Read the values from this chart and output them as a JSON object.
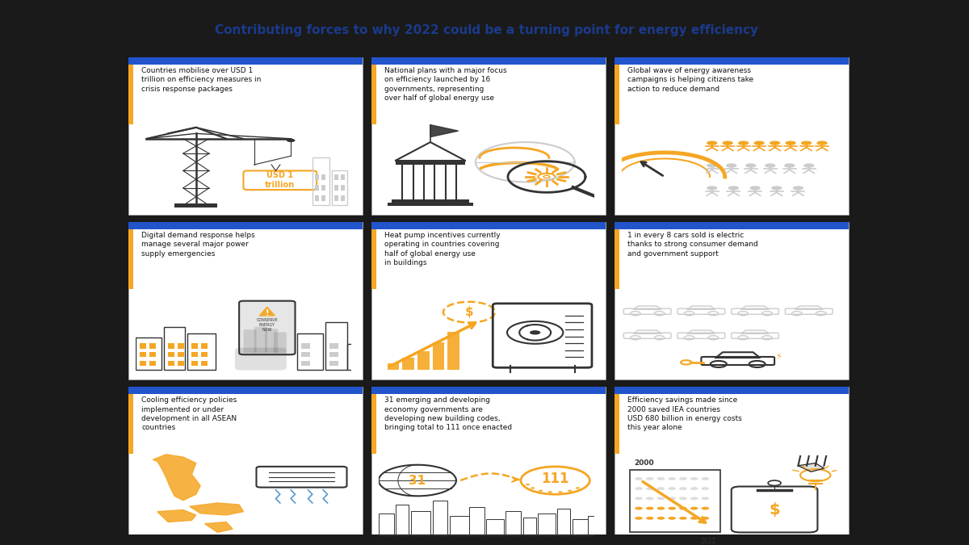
{
  "title": "Contributing forces to why 2022 could be a turning point for energy efficiency",
  "title_color": "#1a3a8c",
  "background_color": "#ffffff",
  "outer_bg": "#1a1a1a",
  "card_bg": "#ffffff",
  "accent_color": "#f5a623",
  "blue_color": "#2255cc",
  "border_color": "#cccccc",
  "text_color": "#111111",
  "gray_color": "#cccccc",
  "cards": [
    {
      "row": 0,
      "col": 0,
      "text": "Countries mobilise over USD 1\ntrillion on efficiency measures in\ncrisis response packages"
    },
    {
      "row": 0,
      "col": 1,
      "text": "National plans with a major focus\non efficiency launched by 16\ngovernments, representing\nover half of global energy use"
    },
    {
      "row": 0,
      "col": 2,
      "text": "Global wave of energy awareness\ncampaigns is helping citizens take\naction to reduce demand"
    },
    {
      "row": 1,
      "col": 0,
      "text": "Digital demand response helps\nmanage several major power\nsupply emergencies"
    },
    {
      "row": 1,
      "col": 1,
      "text": "Heat pump incentives currently\noperating in countries covering\nhalf of global energy use\nin buildings"
    },
    {
      "row": 1,
      "col": 2,
      "text": "1 in every 8 cars sold is electric\nthanks to strong consumer demand\nand government support"
    },
    {
      "row": 2,
      "col": 0,
      "text": "Cooling efficiency policies\nimplemented or under\ndevelopment in all ASEAN\ncountries"
    },
    {
      "row": 2,
      "col": 1,
      "text": "31 emerging and developing\neconomy governments are\ndeveloping new building codes,\nbringing total to 111 once enacted"
    },
    {
      "row": 2,
      "col": 2,
      "text": "Efficiency savings made since\n2000 saved IEA countries\nUSD 680 billion in energy costs\nthis year alone"
    }
  ]
}
